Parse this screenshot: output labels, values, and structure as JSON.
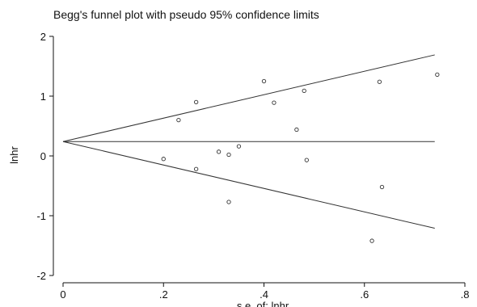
{
  "chart_data": {
    "type": "scatter",
    "title": "Begg's funnel plot with pseudo 95% confidence limits",
    "xlabel": "s.e. of: lnhr",
    "ylabel": "lnhr",
    "xlim": [
      0,
      0.8
    ],
    "ylim": [
      -2,
      2
    ],
    "xticks": [
      0,
      0.2,
      0.4,
      0.6,
      0.8
    ],
    "xtick_labels": [
      "0",
      ".2",
      ".4",
      ".6",
      ".8"
    ],
    "yticks": [
      2,
      1,
      0,
      -1,
      -2
    ],
    "ytick_labels": [
      "2",
      "1",
      "0",
      "-1",
      "-2"
    ],
    "grid": false,
    "pooled_estimate": 0.24,
    "confidence_limits": {
      "x": [
        0,
        0.74
      ],
      "upper": [
        0.24,
        1.69
      ],
      "lower": [
        0.24,
        -1.21
      ]
    },
    "points": [
      {
        "x": 0.2,
        "y": -0.05
      },
      {
        "x": 0.23,
        "y": 0.6
      },
      {
        "x": 0.265,
        "y": 0.9
      },
      {
        "x": 0.265,
        "y": -0.22
      },
      {
        "x": 0.31,
        "y": 0.07
      },
      {
        "x": 0.33,
        "y": 0.02
      },
      {
        "x": 0.33,
        "y": -0.77
      },
      {
        "x": 0.35,
        "y": 0.16
      },
      {
        "x": 0.4,
        "y": 1.25
      },
      {
        "x": 0.42,
        "y": 0.89
      },
      {
        "x": 0.465,
        "y": 0.44
      },
      {
        "x": 0.48,
        "y": 1.09
      },
      {
        "x": 0.485,
        "y": -0.07
      },
      {
        "x": 0.615,
        "y": -1.42
      },
      {
        "x": 0.63,
        "y": 1.24
      },
      {
        "x": 0.635,
        "y": -0.52
      },
      {
        "x": 0.745,
        "y": 1.36
      }
    ],
    "colors": {
      "axis": "#111111",
      "line": "#333333",
      "marker": "#333333"
    }
  }
}
